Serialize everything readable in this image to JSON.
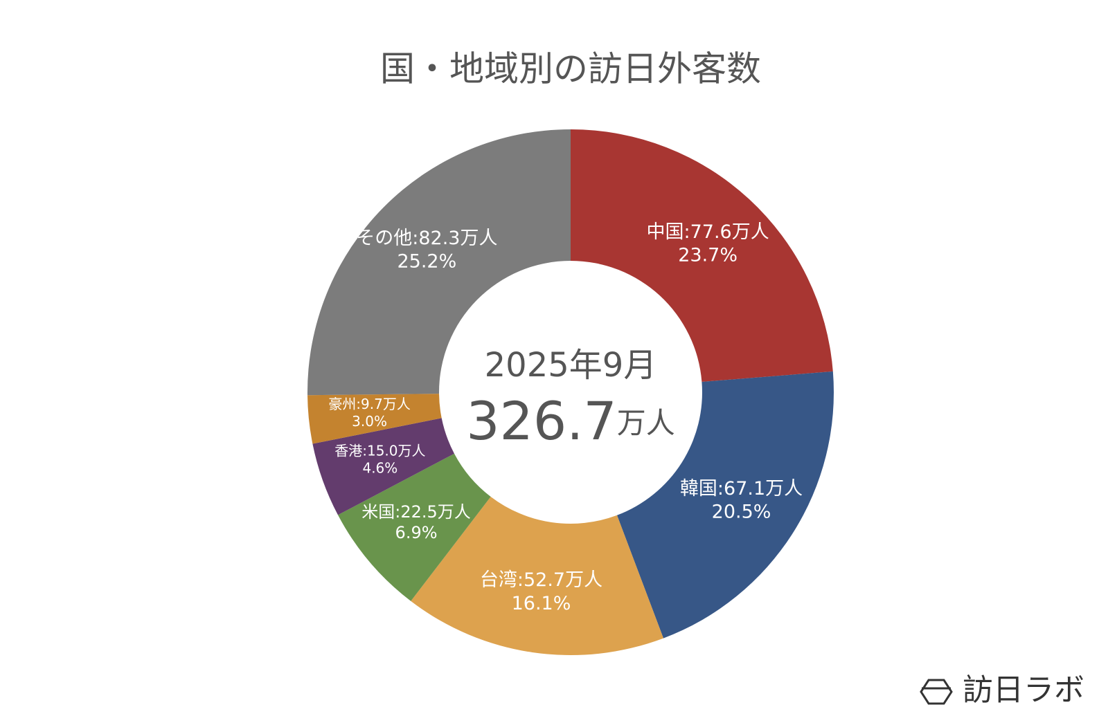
{
  "chart_data": {
    "type": "donut",
    "title": "国・地域別の訪日外客数",
    "subtitle": "2025年9月",
    "total": 326.7,
    "unit": "万人",
    "values": [
      77.6,
      67.1,
      52.7,
      22.5,
      15.0,
      9.7,
      82.3
    ],
    "value_labels": [
      "中国:77.6万人",
      "韓国:67.1万人",
      "台湾:52.7万人",
      "米国:22.5万人",
      "香港:15.0万人",
      "豪州:9.7万人",
      "その他:82.3万人"
    ],
    "percents": [
      23.7,
      20.5,
      16.1,
      6.9,
      4.6,
      3.0,
      25.2
    ],
    "percent_labels": [
      "23.7%",
      "20.5%",
      "16.1%",
      "6.9%",
      "4.6%",
      "3.0%",
      "25.2%"
    ],
    "colors": [
      "#a83632",
      "#375787",
      "#dda24e",
      "#69944c",
      "#633c6d",
      "#c4832f",
      "#7c7c7c"
    ],
    "brand": "訪日ラボ"
  }
}
